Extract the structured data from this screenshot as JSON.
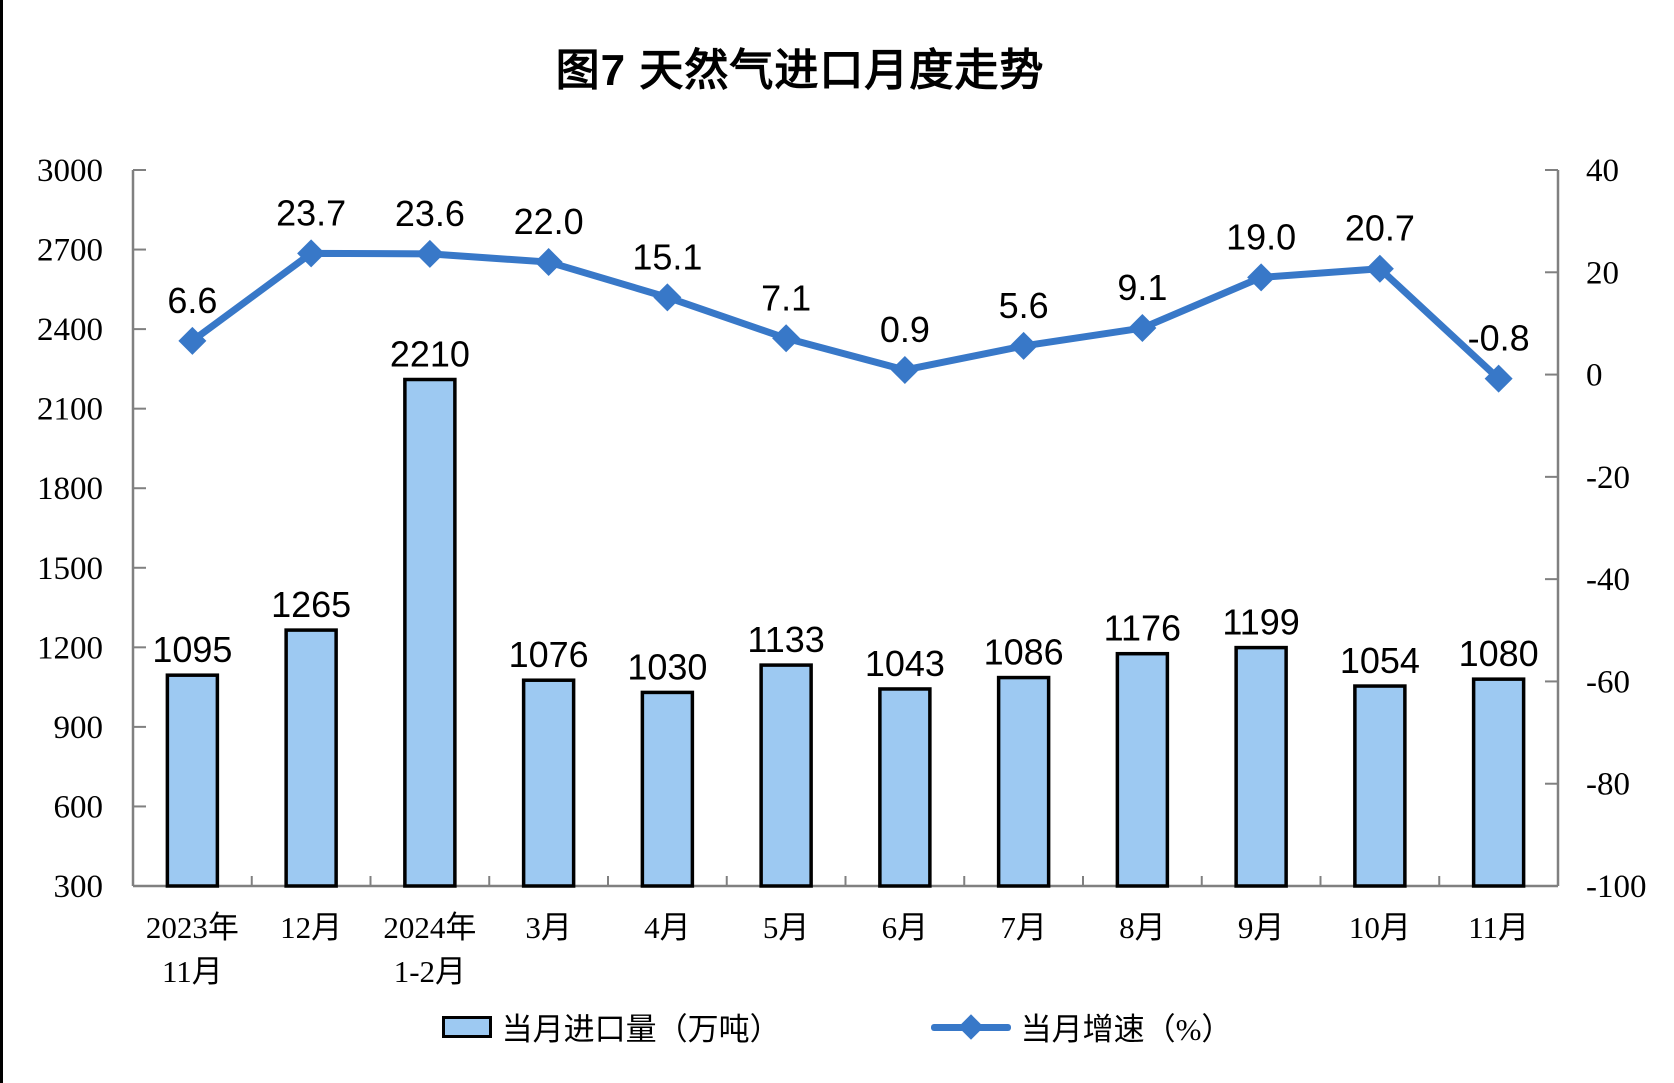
{
  "page": {
    "title": "图7 天然气进口月度走势"
  },
  "chart_data": {
    "type": "combo-bar-line",
    "title": "图7 天然气进口月度走势",
    "categories": [
      {
        "line1": "2023年",
        "line2": "11月"
      },
      {
        "line1": "12月",
        "line2": ""
      },
      {
        "line1": "2024年",
        "line2": "1-2月"
      },
      {
        "line1": "3月",
        "line2": ""
      },
      {
        "line1": "4月",
        "line2": ""
      },
      {
        "line1": "5月",
        "line2": ""
      },
      {
        "line1": "6月",
        "line2": ""
      },
      {
        "line1": "7月",
        "line2": ""
      },
      {
        "line1": "8月",
        "line2": ""
      },
      {
        "line1": "9月",
        "line2": ""
      },
      {
        "line1": "10月",
        "line2": ""
      },
      {
        "line1": "11月",
        "line2": ""
      }
    ],
    "series": [
      {
        "name": "当月进口量（万吨）",
        "type": "bar",
        "axis": "left",
        "color": "#9DC9F2",
        "border_color": "#000000",
        "values": [
          1095,
          1265,
          2210,
          1076,
          1030,
          1133,
          1043,
          1086,
          1176,
          1199,
          1054,
          1080
        ],
        "labels": [
          "1095",
          "1265",
          "2210",
          "1076",
          "1030",
          "1133",
          "1043",
          "1086",
          "1176",
          "1199",
          "1054",
          "1080"
        ]
      },
      {
        "name": "当月增速（%）",
        "type": "line",
        "axis": "right",
        "color": "#3878C8",
        "values": [
          6.6,
          23.7,
          23.6,
          22.0,
          15.1,
          7.1,
          0.9,
          5.6,
          9.1,
          19.0,
          20.7,
          -0.8
        ],
        "labels": [
          "6.6",
          "23.7",
          "23.6",
          "22.0",
          "15.1",
          "7.1",
          "0.9",
          "5.6",
          "9.1",
          "19.0",
          "20.7",
          "-0.8"
        ]
      }
    ],
    "left_axis": {
      "min": 300,
      "max": 3000,
      "step": 300,
      "ticks": [
        3000,
        2700,
        2400,
        2100,
        1800,
        1500,
        1200,
        900,
        600,
        300
      ]
    },
    "right_axis": {
      "min": -100,
      "max": 40,
      "step": 20,
      "ticks": [
        40,
        20,
        0,
        -20,
        -40,
        -60,
        -80,
        -100
      ]
    },
    "legend_position": "bottom",
    "grid": false,
    "axis_color": "#808080",
    "text_color": "#000000",
    "background": "#ffffff",
    "page_left_border_color": "#000000"
  }
}
